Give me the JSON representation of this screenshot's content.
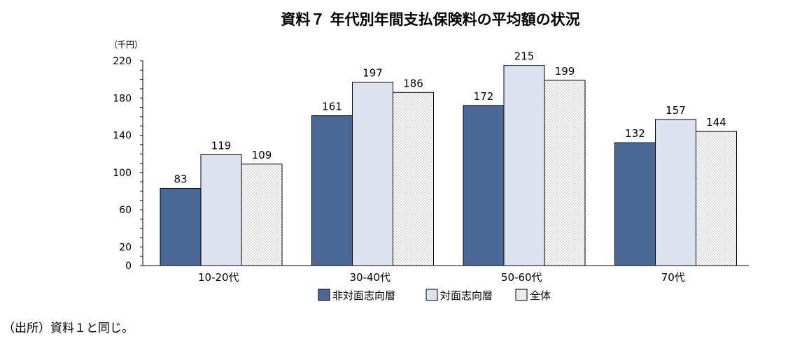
{
  "chart_data": {
    "type": "bar",
    "title": "資料７ 年代別年間支払保険料の平均額の状況",
    "ylabel": "（千円）",
    "xlabel": "",
    "categories": [
      "10-20代",
      "30-40代",
      "50-60代",
      "70代"
    ],
    "series": [
      {
        "name": "非対面志向層",
        "values": [
          83,
          161,
          172,
          132
        ],
        "color": "#4a6896",
        "pattern": "solid"
      },
      {
        "name": "対面志向層",
        "values": [
          119,
          197,
          215,
          157
        ],
        "color": "#dde3ee",
        "pattern": "solid"
      },
      {
        "name": "全体",
        "values": [
          109,
          186,
          199,
          144
        ],
        "color": "#ffffff",
        "pattern": "dots"
      }
    ],
    "yticks": [
      0,
      20,
      60,
      100,
      140,
      180,
      220
    ],
    "ylim": [
      0,
      220
    ],
    "grid": false,
    "legend_position": "bottom"
  },
  "source_note": "（出所）資料１と同じ。"
}
